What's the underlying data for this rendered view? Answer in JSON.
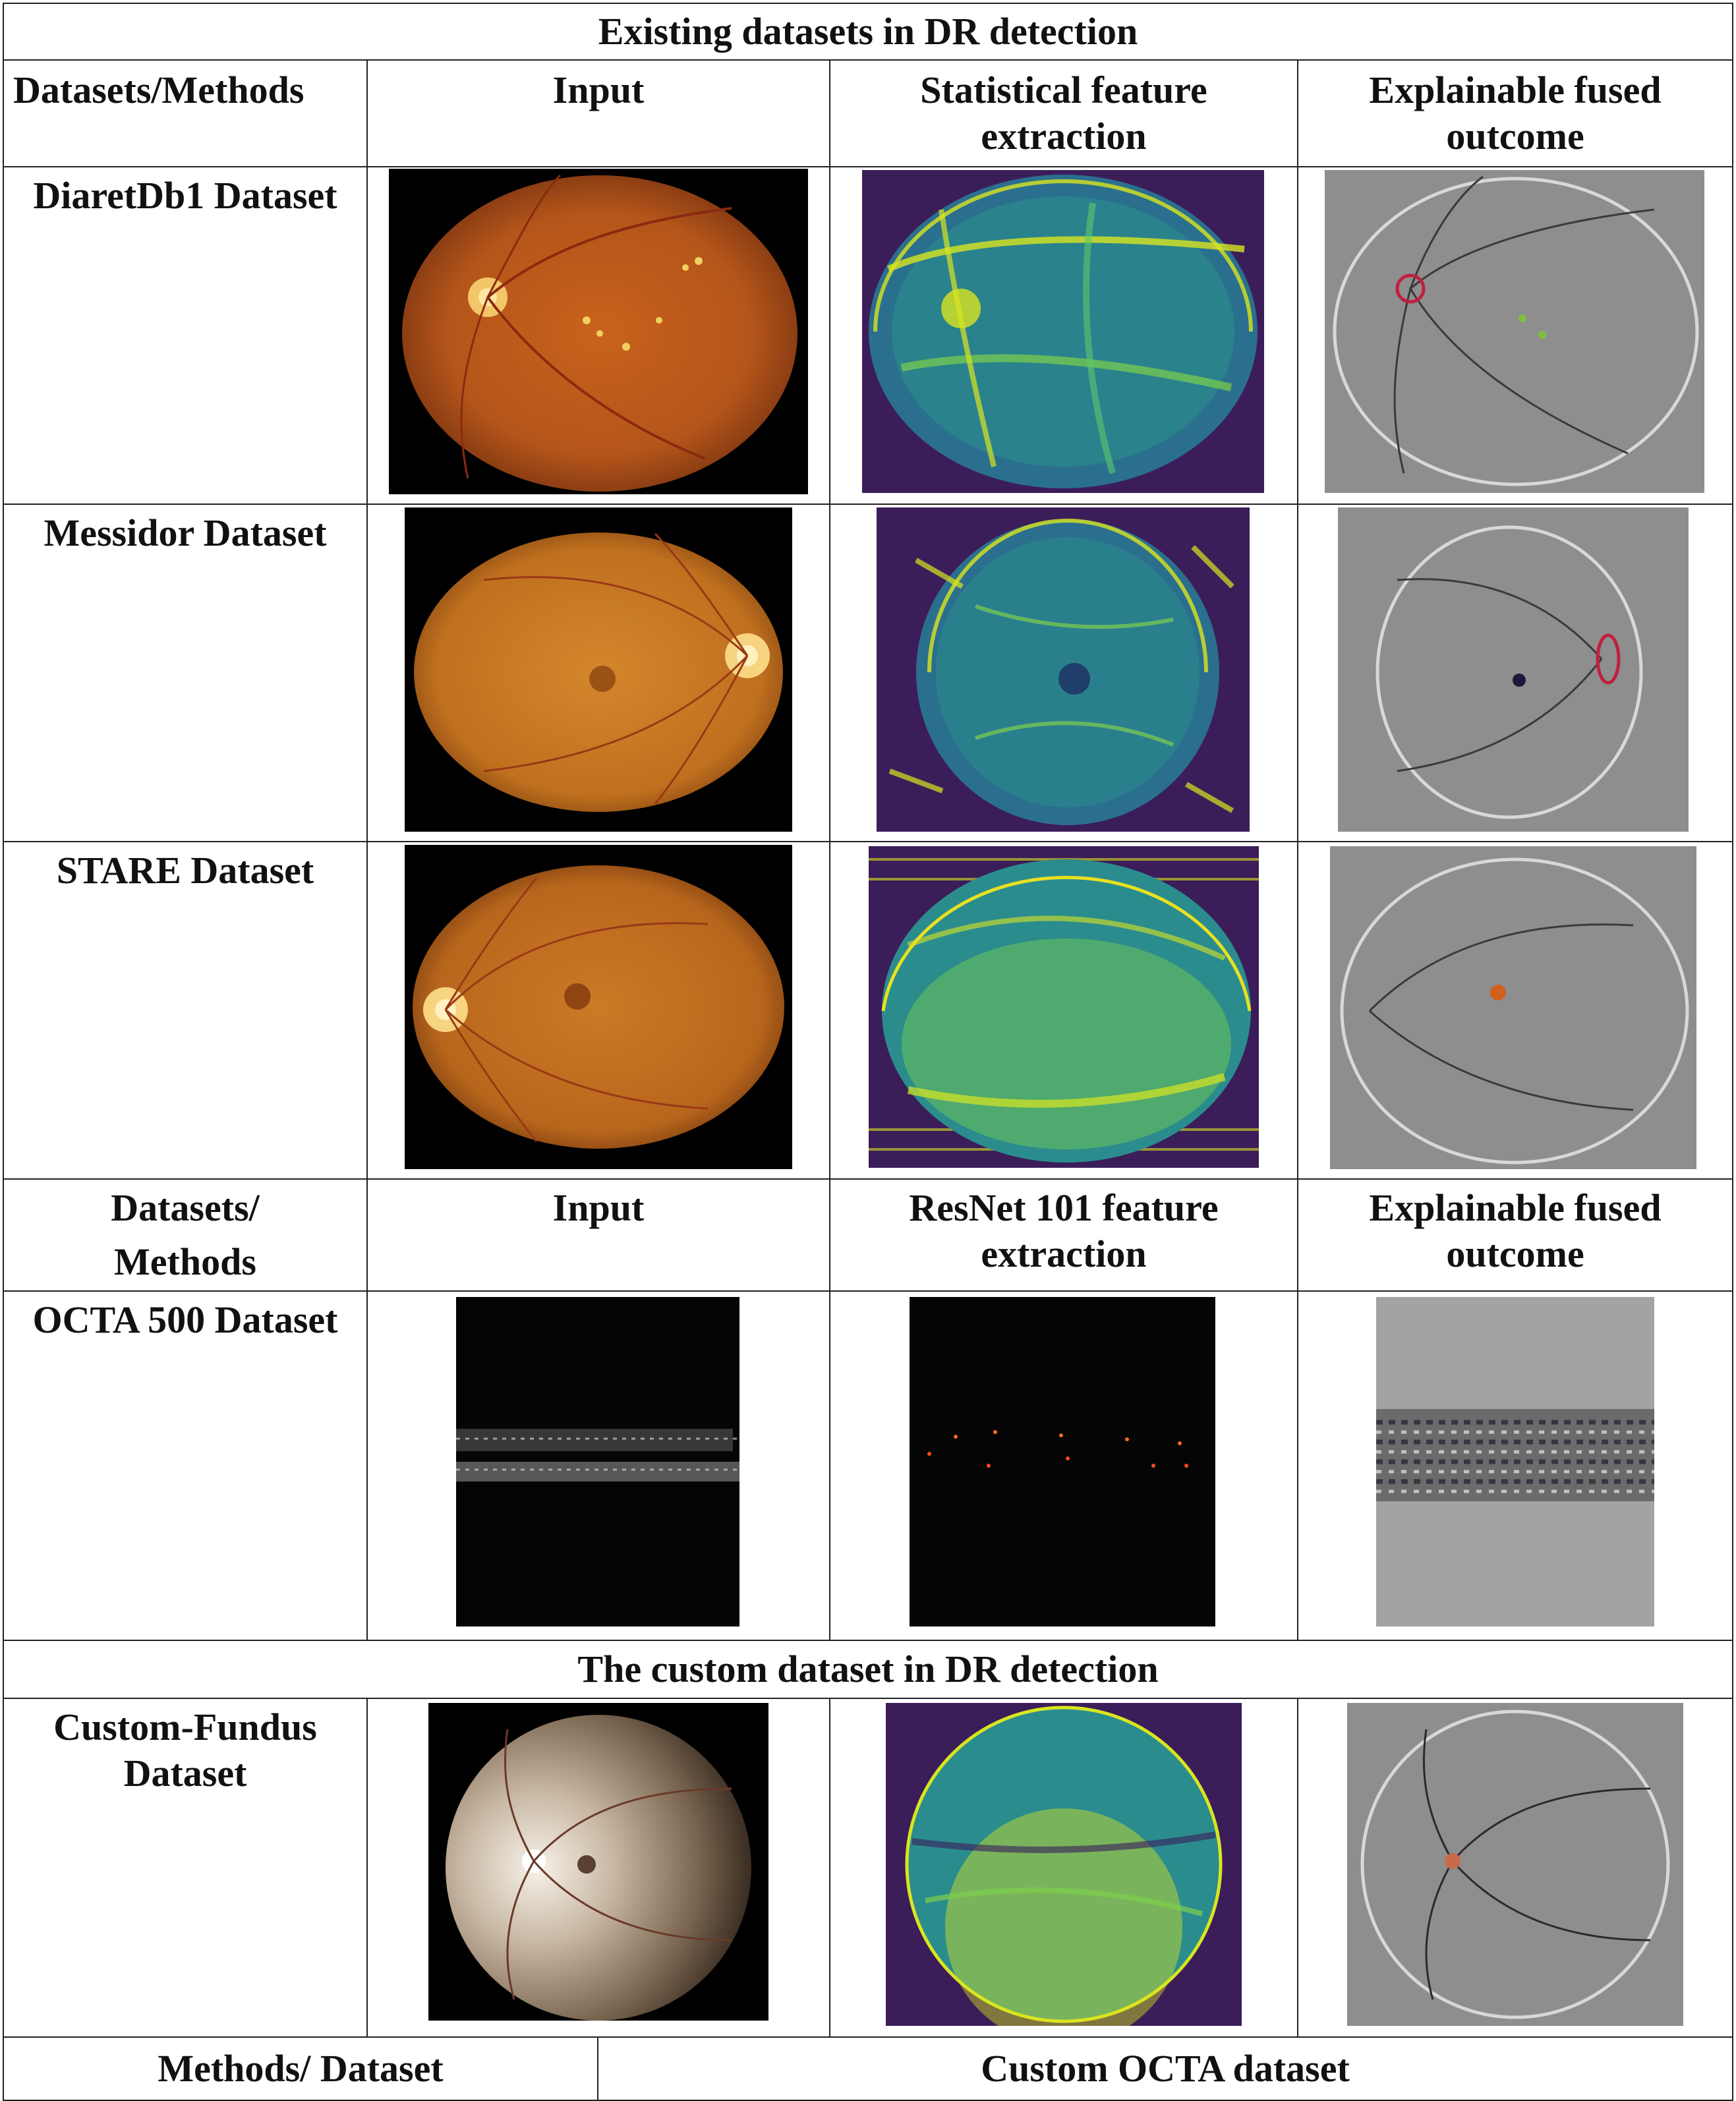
{
  "title": "Existing datasets in DR detection",
  "header1": {
    "col1": "Datasets/Methods",
    "col2": "Input",
    "col3": [
      "Statistical feature",
      "extraction"
    ],
    "col4": [
      "Explainable fused",
      "outcome"
    ]
  },
  "rows1": [
    {
      "label": "DiaretDb1 Dataset"
    },
    {
      "label": "Messidor Dataset"
    },
    {
      "label": "STARE Dataset"
    }
  ],
  "header2": {
    "col1": [
      "Datasets/",
      "Methods"
    ],
    "col2": "Input",
    "col3": [
      "ResNet 101 feature",
      "extraction"
    ],
    "col4": [
      "Explainable fused",
      "outcome"
    ]
  },
  "octa_row": {
    "label": "OCTA 500 Dataset"
  },
  "custom_title": "The custom dataset in DR detection",
  "custom_row": {
    "label": [
      "Custom-Fundus",
      "Dataset"
    ]
  },
  "footer": {
    "col1": "Methods/ Dataset",
    "col2": "Custom OCTA dataset"
  },
  "colors": {
    "fundus_orange": "#c8701e",
    "viridis_dark": "#3b1d5a",
    "viridis_mid": "#2b8c8e",
    "viridis_bright": "#d9e51f",
    "gray_outcome": "#8e8e8e"
  }
}
